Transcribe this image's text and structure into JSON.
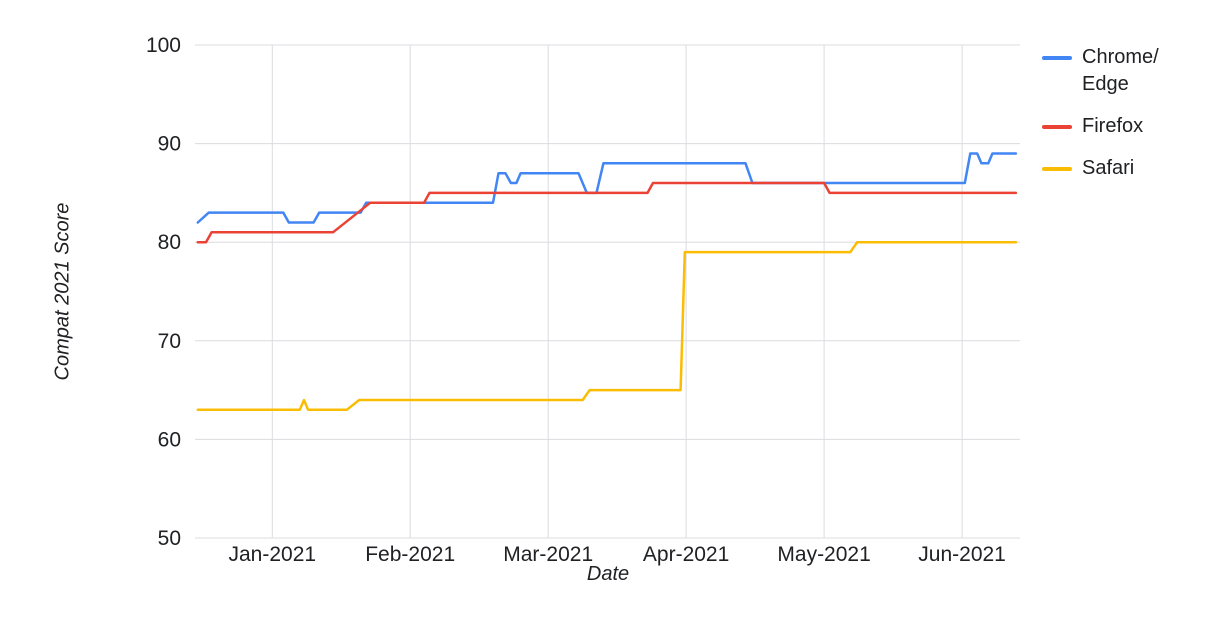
{
  "chart_data": {
    "type": "line",
    "title": "",
    "xlabel": "Date",
    "ylabel": "Compat 2021 Score",
    "ylim": [
      50,
      100
    ],
    "y_ticks": [
      50,
      60,
      70,
      80,
      90,
      100
    ],
    "x_tick_labels": [
      "Jan-2021",
      "Feb-2021",
      "Mar-2021",
      "Apr-2021",
      "May-2021",
      "Jun-2021"
    ],
    "x_tick_positions": [
      0,
      1,
      2,
      3,
      4,
      5
    ],
    "x_range": [
      -0.56,
      5.42
    ],
    "grid": true,
    "legend_position": "right",
    "colors": {
      "grid": "#dadce0",
      "tick_text": "#202124",
      "background": "#ffffff"
    },
    "series": [
      {
        "name": "Chrome/Edge",
        "legend_label": "Chrome/\nEdge",
        "color": "#4285F4",
        "points": [
          [
            -0.54,
            82
          ],
          [
            -0.46,
            83
          ],
          [
            0.08,
            83
          ],
          [
            0.12,
            82
          ],
          [
            0.3,
            82
          ],
          [
            0.34,
            83
          ],
          [
            0.64,
            83
          ],
          [
            0.68,
            84
          ],
          [
            1.6,
            84
          ],
          [
            1.64,
            87
          ],
          [
            1.69,
            87
          ],
          [
            1.73,
            86
          ],
          [
            1.77,
            86
          ],
          [
            1.8,
            87
          ],
          [
            2.22,
            87
          ],
          [
            2.28,
            85
          ],
          [
            2.35,
            85
          ],
          [
            2.4,
            88
          ],
          [
            3.43,
            88
          ],
          [
            3.48,
            86
          ],
          [
            5.02,
            86
          ],
          [
            5.06,
            89
          ],
          [
            5.11,
            89
          ],
          [
            5.14,
            88
          ],
          [
            5.19,
            88
          ],
          [
            5.22,
            89
          ],
          [
            5.39,
            89
          ]
        ]
      },
      {
        "name": "Firefox",
        "legend_label": "Firefox",
        "color": "#EA4335",
        "points": [
          [
            -0.54,
            80
          ],
          [
            -0.48,
            80
          ],
          [
            -0.44,
            81
          ],
          [
            0.44,
            81
          ],
          [
            0.71,
            84
          ],
          [
            1.1,
            84
          ],
          [
            1.14,
            85
          ],
          [
            2.72,
            85
          ],
          [
            2.76,
            86
          ],
          [
            4.0,
            86
          ],
          [
            4.04,
            85
          ],
          [
            5.39,
            85
          ]
        ]
      },
      {
        "name": "Safari",
        "legend_label": "Safari",
        "color": "#FBBC04",
        "points": [
          [
            -0.54,
            63
          ],
          [
            0.2,
            63
          ],
          [
            0.23,
            64
          ],
          [
            0.26,
            63
          ],
          [
            0.54,
            63
          ],
          [
            0.63,
            64
          ],
          [
            2.25,
            64
          ],
          [
            2.3,
            65
          ],
          [
            2.96,
            65
          ],
          [
            2.99,
            79
          ],
          [
            4.19,
            79
          ],
          [
            4.24,
            80
          ],
          [
            5.39,
            80
          ]
        ]
      }
    ]
  }
}
